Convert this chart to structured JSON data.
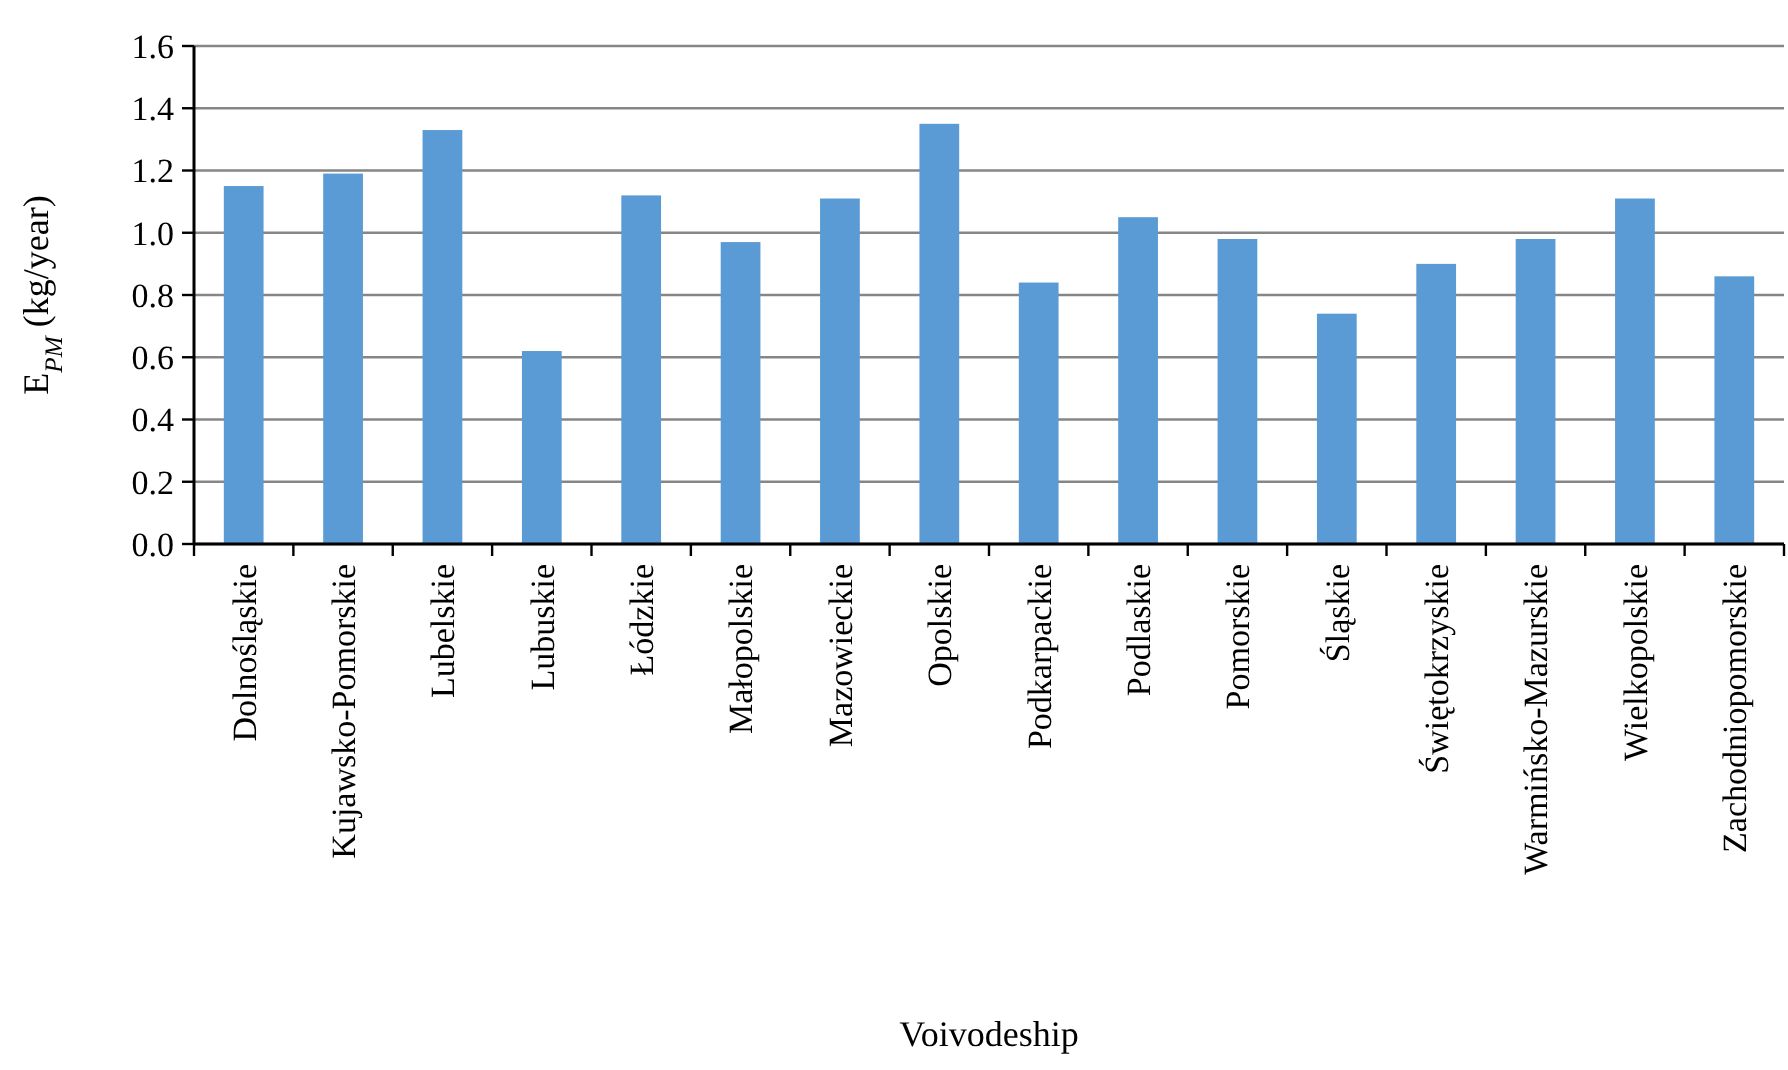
{
  "chart_data": {
    "type": "bar",
    "xlabel": "Voivodeship",
    "ylabel": "E$_{PM}$ (kg/year)",
    "categories": [
      "Dolnośląskie",
      "Kujawsko-Pomorskie",
      "Lubelskie",
      "Lubuskie",
      "Łódzkie",
      "Małopolskie",
      "Mazowieckie",
      "Opolskie",
      "Podkarpackie",
      "Podlaskie",
      "Pomorskie",
      "Śląskie",
      "Świętokrzyskie",
      "Warmińsko-Mazurskie",
      "Wielkopolskie",
      "Zachodniopomorskie"
    ],
    "values": [
      1.15,
      1.19,
      1.33,
      0.62,
      1.12,
      0.97,
      1.11,
      1.35,
      0.84,
      1.05,
      0.98,
      0.74,
      0.9,
      0.98,
      1.11,
      0.86
    ],
    "color": "#5b9bd5",
    "ylim": [
      0,
      1.6
    ],
    "yticks": [
      {
        "value": 0,
        "label": "0.0"
      },
      {
        "value": 0.2,
        "label": "0.2"
      },
      {
        "value": 0.4,
        "label": "0.4"
      },
      {
        "value": 0.6,
        "label": "0.6"
      },
      {
        "value": 0.8,
        "label": "0.8"
      },
      {
        "value": 1,
        "label": "1.0"
      },
      {
        "value": 1.2,
        "label": "1.2"
      },
      {
        "value": 1.4,
        "label": "1.4"
      },
      {
        "value": 1.6,
        "label": "1.6"
      }
    ],
    "grid": "y"
  }
}
